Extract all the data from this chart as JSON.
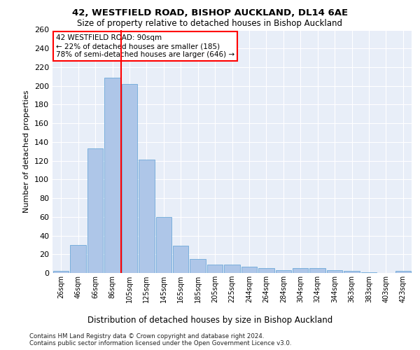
{
  "title_line1": "42, WESTFIELD ROAD, BISHOP AUCKLAND, DL14 6AE",
  "title_line2": "Size of property relative to detached houses in Bishop Auckland",
  "xlabel": "Distribution of detached houses by size in Bishop Auckland",
  "ylabel": "Number of detached properties",
  "footnote1": "Contains HM Land Registry data © Crown copyright and database right 2024.",
  "footnote2": "Contains public sector information licensed under the Open Government Licence v3.0.",
  "annotation_line1": "42 WESTFIELD ROAD: 90sqm",
  "annotation_line2": "← 22% of detached houses are smaller (185)",
  "annotation_line3": "78% of semi-detached houses are larger (646) →",
  "bar_labels": [
    "26sqm",
    "46sqm",
    "66sqm",
    "86sqm",
    "105sqm",
    "125sqm",
    "145sqm",
    "165sqm",
    "185sqm",
    "205sqm",
    "225sqm",
    "244sqm",
    "264sqm",
    "284sqm",
    "304sqm",
    "324sqm",
    "344sqm",
    "363sqm",
    "383sqm",
    "403sqm",
    "423sqm"
  ],
  "bar_values": [
    2,
    30,
    133,
    209,
    202,
    121,
    60,
    29,
    15,
    9,
    9,
    7,
    5,
    3,
    5,
    5,
    3,
    2,
    1,
    0,
    2
  ],
  "bar_color": "#aec6e8",
  "bar_edgecolor": "#5a9fd4",
  "background_color": "#e8eef8",
  "grid_color": "#ffffff",
  "redline_x": 3.5,
  "ylim": [
    0,
    260
  ],
  "yticks": [
    0,
    20,
    40,
    60,
    80,
    100,
    120,
    140,
    160,
    180,
    200,
    220,
    240,
    260
  ]
}
